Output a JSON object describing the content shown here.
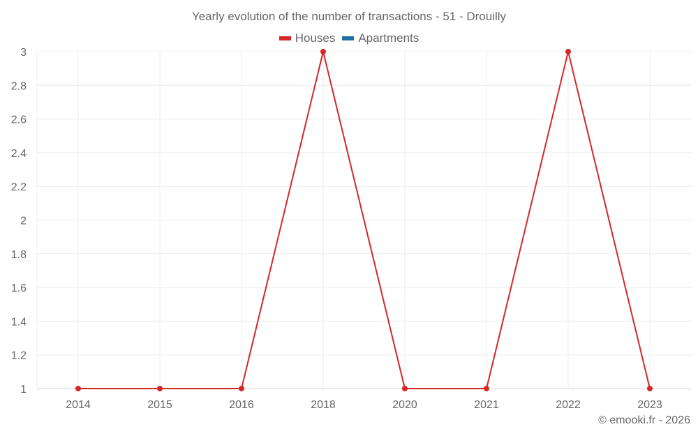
{
  "chart_data": {
    "type": "line",
    "title": "Yearly evolution of the number of transactions - 51 - Drouilly",
    "xlabel": "",
    "ylabel": "",
    "categories": [
      "2014",
      "2015",
      "2016",
      "2018",
      "2020",
      "2021",
      "2022",
      "2023"
    ],
    "series": [
      {
        "name": "Houses",
        "color": "#d62728",
        "values": [
          1,
          1,
          1,
          3,
          1,
          1,
          3,
          1
        ]
      },
      {
        "name": "Apartments",
        "color": "#1f6fa8",
        "values": []
      }
    ],
    "ylim": [
      1,
      3
    ],
    "yticks": [
      "1",
      "1.2",
      "1.4",
      "1.6",
      "1.8",
      "2",
      "2.2",
      "2.4",
      "2.6",
      "2.8",
      "3"
    ],
    "grid": true,
    "legend_position": "top"
  },
  "title": "Yearly evolution of the number of transactions - 51 - Drouilly",
  "legend": [
    {
      "label": "Houses",
      "color": "#d62728"
    },
    {
      "label": "Apartments",
      "color": "#1f6fa8"
    }
  ],
  "credit": "© emooki.fr - 2026"
}
